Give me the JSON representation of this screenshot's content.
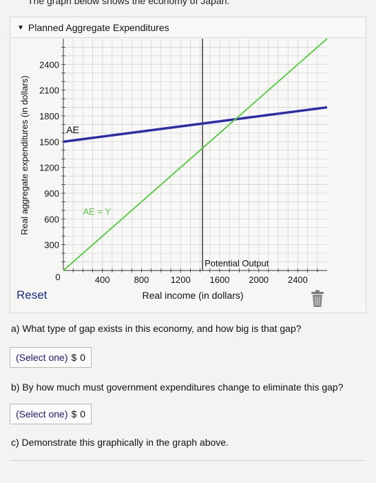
{
  "intro_text": "The graph below shows the economy of Japan.",
  "panel": {
    "title": "Planned Aggregate Expenditures"
  },
  "chart_data": {
    "type": "line",
    "title": "",
    "xlabel": "Real income (in dollars)",
    "ylabel": "Real aggregate expenditures (in dollars)",
    "xlim": [
      0,
      2700
    ],
    "ylim": [
      0,
      2700
    ],
    "x_ticks": [
      0,
      400,
      800,
      1200,
      1600,
      2000,
      2400
    ],
    "x_tick_labels": [
      "0",
      "400",
      "800",
      "1200",
      "1600",
      "2000",
      "2400"
    ],
    "y_ticks": [
      300,
      600,
      900,
      1200,
      1500,
      1800,
      2100,
      2400
    ],
    "y_tick_labels": [
      "300",
      "600",
      "900",
      "1200",
      "1500",
      "1800",
      "2100",
      "2400"
    ],
    "grid": true,
    "series": [
      {
        "name": "AE",
        "color": "#2b2bb0",
        "x": [
          0,
          2700
        ],
        "y": [
          1500,
          1900
        ]
      },
      {
        "name": "AE = Y",
        "color": "#5ecb4a",
        "x": [
          0,
          2700
        ],
        "y": [
          0,
          2700
        ]
      }
    ],
    "vlines": [
      {
        "x": 1425,
        "label": "Potential Output"
      }
    ],
    "zero_label": "0"
  },
  "reset_label": "Reset",
  "questions": [
    {
      "text": "a) What type of gap exists in this economy, and how big is that gap?",
      "select": "(Select one)",
      "prefix": "$",
      "value": "0"
    },
    {
      "text": "b) By how much must government expenditures change to eliminate this gap?",
      "select": "(Select one)",
      "prefix": "$",
      "value": "0"
    },
    {
      "text": "c) Demonstrate this graphically in the graph above."
    }
  ],
  "icons": {
    "collapse": "caret-down-icon",
    "trash": "trash-icon"
  }
}
